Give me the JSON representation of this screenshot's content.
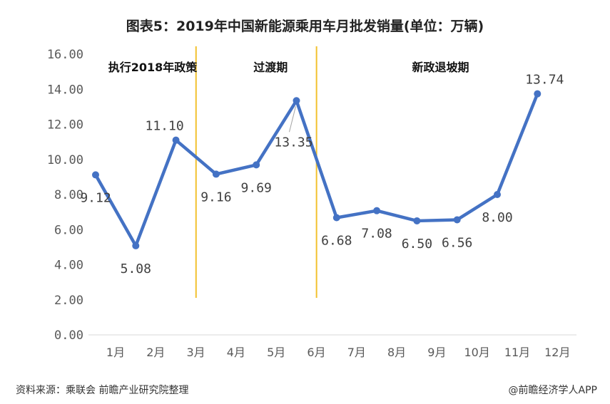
{
  "title": "图表5：2019年中国新能源乘用车月批发销量(单位：万辆)",
  "source": "资料来源：乘联会 前瞻产业研究院整理",
  "credit": "@前瞻经济学人APP",
  "chart_data": {
    "type": "line",
    "title": "图表5：2019年中国新能源乘用车月批发销量(单位：万辆)",
    "categories": [
      "1月",
      "2月",
      "3月",
      "4月",
      "5月",
      "6月",
      "7月",
      "8月",
      "9月",
      "10月",
      "11月",
      "12月"
    ],
    "values": [
      9.12,
      5.08,
      11.1,
      9.16,
      9.69,
      13.35,
      6.68,
      7.08,
      6.5,
      6.56,
      8.0,
      13.74
    ],
    "value_labels": [
      "9.12",
      "5.08",
      "11.10",
      "9.16",
      "9.69",
      "13.35",
      "6.68",
      "7.08",
      "6.50",
      "6.56",
      "8.00",
      "13.74"
    ],
    "ylim": [
      0,
      16
    ],
    "yticks": [
      "0.00",
      "2.00",
      "4.00",
      "6.00",
      "8.00",
      "10.00",
      "12.00",
      "14.00",
      "16.00"
    ],
    "grid": false,
    "line_color": "#4472C4",
    "divider_color": "#F2C12E",
    "phases": [
      {
        "label": "执行2018年政策"
      },
      {
        "label": "过渡期"
      },
      {
        "label": "新政退坡期"
      }
    ]
  }
}
